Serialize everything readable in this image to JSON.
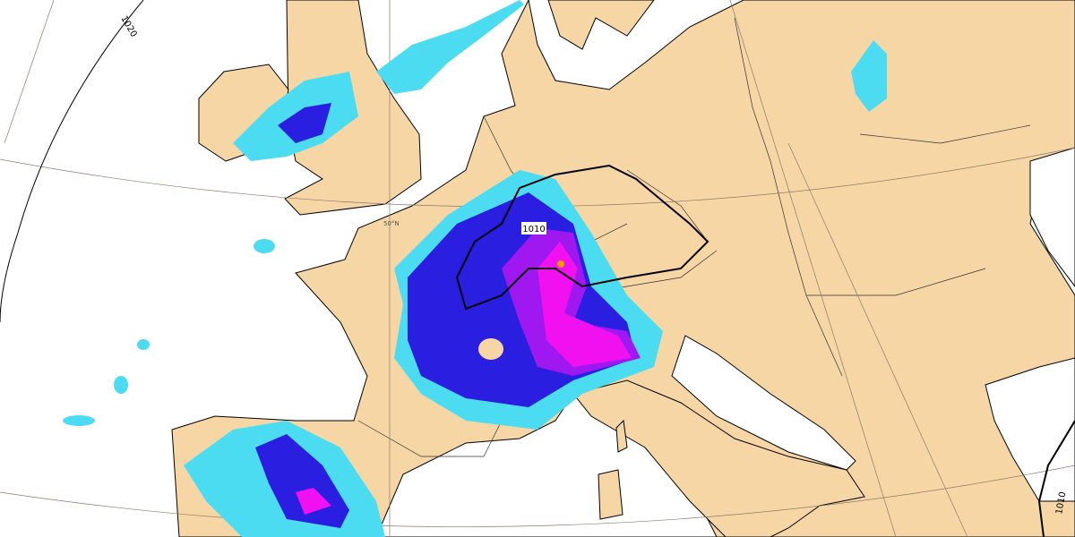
{
  "isobars": [
    {
      "label": "1020"
    },
    {
      "label": "1010"
    },
    {
      "label": "1010"
    }
  ],
  "graticule_labels": [
    "50°N"
  ]
}
